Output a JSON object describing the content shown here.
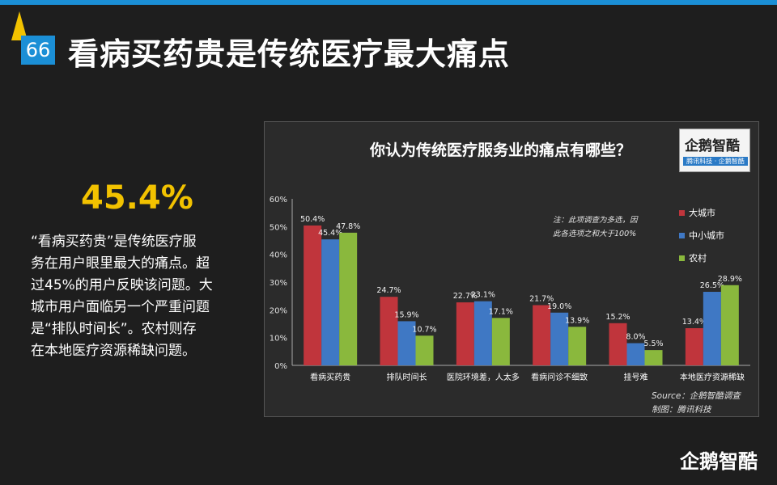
{
  "page": {
    "number": "66",
    "title": "看病买药贵是传统医疗最大痛点",
    "highlight_pct": "45.4%",
    "description_lines": [
      "“看病买药贵”是传统医疗服",
      "务在用户眼里最大的痛点。超",
      "过45%的用户反映该问题。大",
      "城市用户面临另一个严重问题",
      "是“排队时间长”。农村则存",
      "在本地医疗资源稀缺问题。"
    ],
    "footer_logo": "企鹅智酷"
  },
  "logo": {
    "name": "企鹅智酷",
    "tagline": "腾讯科技 · 企鹅智酷"
  },
  "colors": {
    "accent_blue": "#1b8fd6",
    "accent_yellow": "#f2c200",
    "red": "#c0353c",
    "blue": "#3f78c4",
    "green": "#8ab83d"
  },
  "chart_data": {
    "type": "bar",
    "title": "你认为传统医疗服务业的痛点有哪些？",
    "categories": [
      "看病买药贵",
      "排队时间长",
      "医院环境差，人太多",
      "看病问诊不细致",
      "挂号难",
      "本地医疗资源稀缺"
    ],
    "series": [
      {
        "name": "大城市",
        "color": "#c0353c",
        "values": [
          50.4,
          24.7,
          22.7,
          21.7,
          15.2,
          13.4
        ]
      },
      {
        "name": "中小城市",
        "color": "#3f78c4",
        "values": [
          45.4,
          15.9,
          23.1,
          19.0,
          8.0,
          26.5
        ]
      },
      {
        "name": "农村",
        "color": "#8ab83d",
        "values": [
          47.8,
          10.7,
          17.1,
          13.9,
          5.5,
          28.9
        ]
      }
    ],
    "yticks": [
      "0%",
      "10%",
      "20%",
      "30%",
      "40%",
      "50%",
      "60%"
    ],
    "ylim": [
      0,
      60
    ],
    "note_lines": [
      "注：此项调查为多选，因",
      "此各选项之和大于100%"
    ],
    "source_lines": [
      "Source：企鹅智酷调查",
      "制图：腾讯科技"
    ],
    "legend_position": "right"
  }
}
